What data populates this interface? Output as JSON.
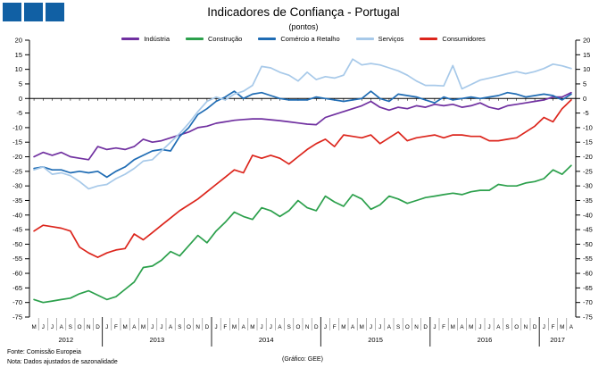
{
  "logo": {
    "color": "#1160a4",
    "count": 3
  },
  "footer": {
    "fonte": "Fonte: Comissão Europeia",
    "nota": "Nota: Dados ajustados de sazonalidade",
    "grafico": "(Gráfico: GEE)"
  },
  "chart_data": {
    "type": "line",
    "title": "Indicadores de Confiança - Portugal",
    "subtitle": "(pontos)",
    "ylabel": "",
    "xlabel": "",
    "ylim": [
      -75,
      20
    ],
    "ytick_step": 5,
    "grid": false,
    "legend_position": "top",
    "x_months": [
      "M",
      "J",
      "J",
      "A",
      "S",
      "O",
      "N",
      "D",
      "J",
      "F",
      "M",
      "A",
      "M",
      "J",
      "J",
      "A",
      "S",
      "O",
      "N",
      "D",
      "J",
      "F",
      "M",
      "A",
      "M",
      "J",
      "J",
      "A",
      "S",
      "O",
      "N",
      "D",
      "J",
      "F",
      "M",
      "A",
      "M",
      "J",
      "J",
      "A",
      "S",
      "O",
      "N",
      "D",
      "J",
      "F",
      "M",
      "A",
      "M",
      "J",
      "J",
      "A",
      "S",
      "O",
      "N",
      "D",
      "J",
      "F",
      "M",
      "A"
    ],
    "years": [
      {
        "label": "2012",
        "start": 0,
        "count": 8
      },
      {
        "label": "2013",
        "start": 8,
        "count": 12
      },
      {
        "label": "2014",
        "start": 20,
        "count": 12
      },
      {
        "label": "2015",
        "start": 32,
        "count": 12
      },
      {
        "label": "2016",
        "start": 44,
        "count": 12
      },
      {
        "label": "2017",
        "start": 56,
        "count": 4
      }
    ],
    "series": [
      {
        "name": "Indústria",
        "color": "#7030a0",
        "values": [
          -20,
          -18.5,
          -19.5,
          -18.5,
          -20,
          -20.5,
          -21,
          -16.5,
          -17.5,
          -17,
          -17.5,
          -16.5,
          -14,
          -15,
          -14.5,
          -13.5,
          -12.5,
          -11.5,
          -10,
          -9.5,
          -8.5,
          -8,
          -7.5,
          -7.2,
          -7,
          -7,
          -7.3,
          -7.6,
          -8,
          -8.4,
          -8.8,
          -9,
          -6.5,
          -5.5,
          -4.5,
          -3.5,
          -2.5,
          -1,
          -3,
          -4,
          -3,
          -3.5,
          -2.5,
          -3,
          -2,
          -2.5,
          -2,
          -3,
          -2.5,
          -1.5,
          -3,
          -3.7,
          -2.5,
          -2,
          -1.5,
          -1,
          -0.5,
          0.5,
          0.5,
          2
        ]
      },
      {
        "name": "Construção",
        "color": "#2ca04c",
        "values": [
          -69,
          -70,
          -69.5,
          -69,
          -68.5,
          -67,
          -66,
          -67.5,
          -69,
          -68,
          -65.5,
          -63,
          -58,
          -57.5,
          -55.5,
          -52.5,
          -54,
          -50.5,
          -47,
          -49.5,
          -45.5,
          -42.5,
          -39,
          -40.5,
          -41.5,
          -37.5,
          -38.5,
          -40.5,
          -38.5,
          -35,
          -37.5,
          -38.5,
          -33.5,
          -35.5,
          -37,
          -33,
          -34.5,
          -38,
          -36.5,
          -33.5,
          -34.5,
          -36,
          -35,
          -34,
          -33.5,
          -33,
          -32.5,
          -33,
          -32,
          -31.5,
          -31.5,
          -29.5,
          -30,
          -30,
          -29,
          -28.5,
          -27.5,
          -24.5,
          -26,
          -23
        ]
      },
      {
        "name": "Comércio a Retalho",
        "color": "#1f6cb4",
        "values": [
          -24,
          -23.5,
          -24.5,
          -24.5,
          -25.5,
          -25,
          -25.5,
          -25,
          -27,
          -25,
          -23.5,
          -21,
          -19.5,
          -18,
          -17.5,
          -18,
          -13,
          -10,
          -5.5,
          -3.5,
          -1,
          0.5,
          2.5,
          0,
          1.5,
          2,
          1,
          0,
          -0.5,
          -0.5,
          -0.5,
          0.5,
          0,
          -0.5,
          -1,
          -0.5,
          0,
          2.5,
          0,
          -1,
          1.5,
          1,
          0.5,
          -0.5,
          -1.5,
          0.5,
          -0.5,
          0,
          0.5,
          0,
          0.5,
          1,
          2,
          1.5,
          0.5,
          1,
          1.5,
          1,
          -0.5,
          1.5
        ]
      },
      {
        "name": "Serviços",
        "color": "#a7c9e9",
        "values": [
          -24.5,
          -23.5,
          -26,
          -25.5,
          -26.5,
          -28.5,
          -31,
          -30,
          -29.5,
          -27.5,
          -26,
          -24,
          -21.5,
          -21,
          -18,
          -15,
          -12,
          -8.5,
          -4.5,
          -1,
          0.5,
          -0.5,
          1.5,
          2.5,
          4.5,
          11,
          10.5,
          9,
          8,
          6,
          9,
          6.5,
          7.5,
          7,
          8,
          13.5,
          11.5,
          12,
          11.5,
          10.5,
          9.5,
          8,
          6,
          4.5,
          4.5,
          4.3,
          11.3,
          3.3,
          4.8,
          6.3,
          7,
          7.7,
          8.5,
          9.2,
          8.5,
          9.2,
          10.3,
          11.8,
          11.2,
          10.3
        ]
      },
      {
        "name": "Consumidores",
        "color": "#dc251c",
        "values": [
          -45.5,
          -43.5,
          -44,
          -44.5,
          -45.5,
          -51,
          -53,
          -54.5,
          -53,
          -52,
          -51.5,
          -46.5,
          -48.5,
          -46,
          -43.5,
          -41,
          -38.5,
          -36.5,
          -34.5,
          -32,
          -29.5,
          -27,
          -24.5,
          -25.5,
          -19.5,
          -20.5,
          -19.5,
          -20.5,
          -22.5,
          -20,
          -17.5,
          -15.5,
          -14,
          -16.5,
          -12.5,
          -13,
          -13.5,
          -12.5,
          -15.5,
          -13.5,
          -11.5,
          -14.5,
          -13.5,
          -13,
          -12.5,
          -13.5,
          -12.5,
          -12.5,
          -13,
          -13,
          -14.5,
          -14.5,
          -14,
          -13.5,
          -11.5,
          -9.5,
          -6.5,
          -8,
          -3.5,
          -0.5
        ]
      }
    ]
  }
}
